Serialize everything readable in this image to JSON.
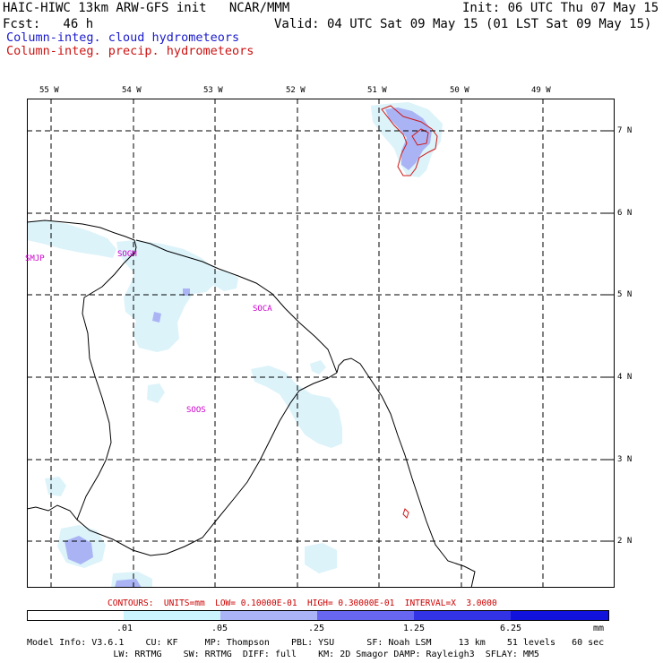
{
  "header": {
    "title": "HAIC-HIWC 13km ARW-GFS init   NCAR/MMM",
    "init": "Init: 06 UTC Thu 07 May 15",
    "fcst": "Fcst:   46 h",
    "valid": "Valid: 04 UTC Sat 09 May 15 (01 LST Sat 09 May 15)",
    "legend_cloud": "Column-integ. cloud hydrometeors",
    "legend_precip": "Column-integ. precip. hydrometeors"
  },
  "axes": {
    "lon_labels": [
      "55 W",
      "54 W",
      "53 W",
      "52 W",
      "51 W",
      "50 W",
      "49 W"
    ],
    "lat_labels": [
      "7 N",
      "6 N",
      "5 N",
      "4 N",
      "3 N",
      "2 N"
    ]
  },
  "stations": [
    "SMJP",
    "SOGM",
    "SOCA",
    "SOOS"
  ],
  "contours_info": "CONTOURS:  UNITS=mm  LOW= 0.10000E-01  HIGH= 0.30000E-01  INTERVAL=X  3.0000",
  "colorbar": {
    "ticks": [
      ".01",
      ".05",
      ".25",
      "1.25",
      "6.25"
    ],
    "units": "mm",
    "colors": [
      "#ffffff",
      "#ccf4ff",
      "#a9b3f5",
      "#6666f0",
      "#3333e6",
      "#1212dd"
    ]
  },
  "footer": {
    "line1": "Model Info: V3.6.1    CU: KF     MP: Thompson    PBL: YSU      SF: Noah LSM     13 km    51 levels   60 sec",
    "line2": "                LW: RRTMG    SW: RRTMG  DIFF: full    KM: 2D Smagor DAMP: Rayleigh3  SFLAY: MM5"
  },
  "colors": {
    "cloud_light": "#dcf3fa",
    "cloud_mid": "#aab4f5",
    "precip": "#d01818",
    "coast": "#000000",
    "station": "#cc00cc"
  }
}
